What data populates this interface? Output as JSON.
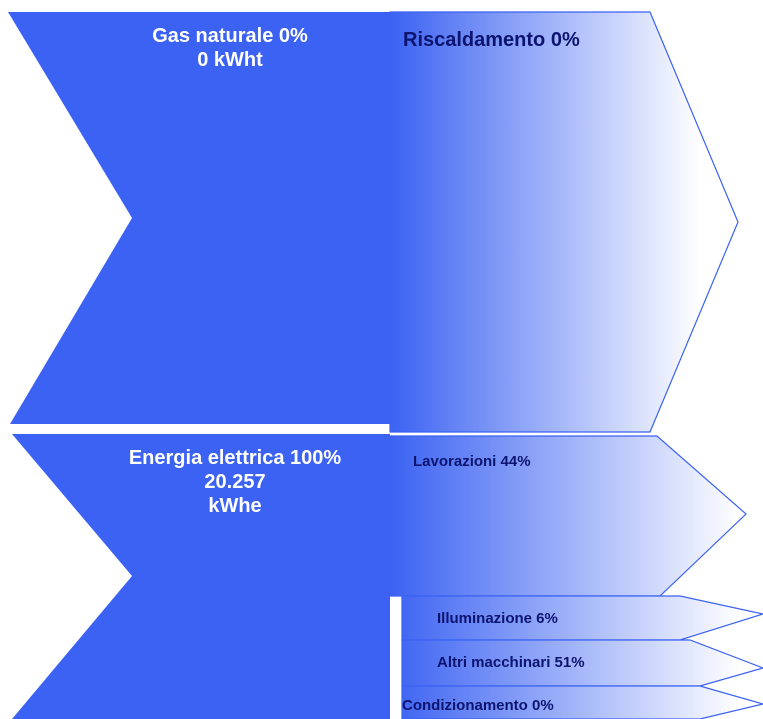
{
  "diagram": {
    "colors": {
      "source_fill": "#3b62f2",
      "outline": "#3b62f2",
      "gradient_end": "#ffffff",
      "source_text": "#ffffff",
      "dest_text": "#0d1470"
    },
    "sources": [
      {
        "name": "Gas naturale",
        "percent": "0%",
        "label_line1": "Gas naturale 0%",
        "label_line2": "0 kWht"
      },
      {
        "name": "Energia elettrica",
        "percent": "100%",
        "label_line1": "Energia elettrica 100%",
        "label_line2": "20.257",
        "label_line3": "kWhe"
      }
    ],
    "uses_gas": [
      {
        "label": "Riscaldamento 0%"
      }
    ],
    "uses_electric": [
      {
        "label": "Lavorazioni 44%",
        "share": 44
      },
      {
        "label": "Illuminazione 6%",
        "share": 6
      },
      {
        "label": "Altri macchinari 51%",
        "share": 51
      },
      {
        "label": "Condizionamento 0%",
        "share": 0
      }
    ]
  }
}
